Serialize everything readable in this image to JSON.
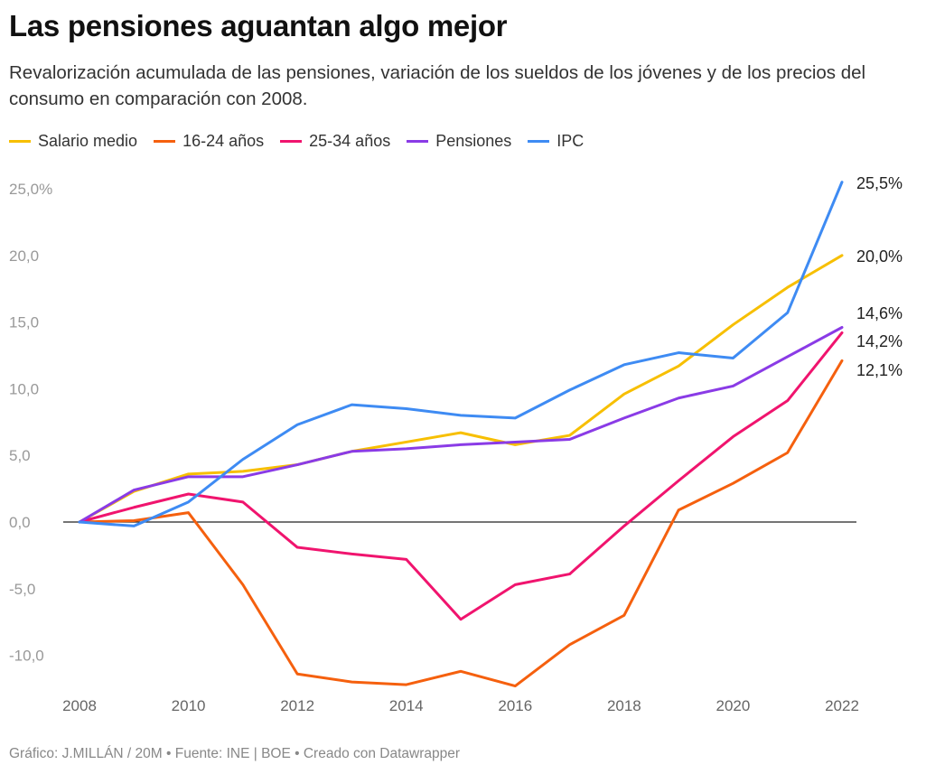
{
  "title": "Las pensiones aguantan algo mejor",
  "subtitle": "Revalorización acumulada de las pensiones, variación de los sueldos de los jóvenes y de los precios del consumo en comparación con 2008.",
  "footer": "Gráfico: J.MILLÁN / 20M • Fuente: INE | BOE • Creado con Datawrapper",
  "chart_data": {
    "type": "line",
    "x": [
      2008,
      2009,
      2010,
      2011,
      2012,
      2013,
      2014,
      2015,
      2016,
      2017,
      2018,
      2019,
      2020,
      2021,
      2022
    ],
    "x_ticks": [
      "2008",
      "2010",
      "2012",
      "2014",
      "2016",
      "2018",
      "2020",
      "2022"
    ],
    "y_ticks": [
      "25,0%",
      "20,0",
      "15,0",
      "10,0",
      "5,0",
      "0,0",
      "-5,0",
      "-10,0"
    ],
    "y_tick_values": [
      25,
      20,
      15,
      10,
      5,
      0,
      -5,
      -10
    ],
    "ylim": [
      -12.5,
      25.5
    ],
    "grid": false,
    "zero_line": true,
    "legend": "top",
    "series": [
      {
        "name": "Salario medio",
        "color": "#f7bf00",
        "values": [
          0,
          2.3,
          3.6,
          3.8,
          4.3,
          5.3,
          6.0,
          6.7,
          5.8,
          6.5,
          9.6,
          11.7,
          14.8,
          17.6,
          20.0
        ],
        "end_label": "20,0%"
      },
      {
        "name": "16-24 años",
        "color": "#f5600e",
        "values": [
          0,
          0.1,
          0.7,
          -4.7,
          -11.4,
          -12.0,
          -12.2,
          -11.2,
          -12.3,
          -9.2,
          -7.0,
          0.9,
          2.9,
          5.2,
          12.1
        ],
        "end_label": "12,1%"
      },
      {
        "name": "25-34 años",
        "color": "#f0146e",
        "values": [
          0,
          1.1,
          2.1,
          1.5,
          -1.9,
          -2.4,
          -2.8,
          -7.3,
          -4.7,
          -3.9,
          -0.3,
          3.1,
          6.4,
          9.1,
          14.2
        ],
        "end_label": "14,2%"
      },
      {
        "name": "Pensiones",
        "color": "#8a3be6",
        "values": [
          0,
          2.4,
          3.4,
          3.4,
          4.3,
          5.3,
          5.5,
          5.8,
          6.0,
          6.2,
          7.8,
          9.3,
          10.2,
          12.4,
          14.6
        ],
        "end_label": "14,6%"
      },
      {
        "name": "IPC",
        "color": "#3e8bf3",
        "values": [
          0,
          -0.3,
          1.5,
          4.7,
          7.3,
          8.8,
          8.5,
          8.0,
          7.8,
          9.9,
          11.8,
          12.7,
          12.3,
          15.7,
          25.5
        ],
        "end_label": "25,5%"
      }
    ]
  }
}
